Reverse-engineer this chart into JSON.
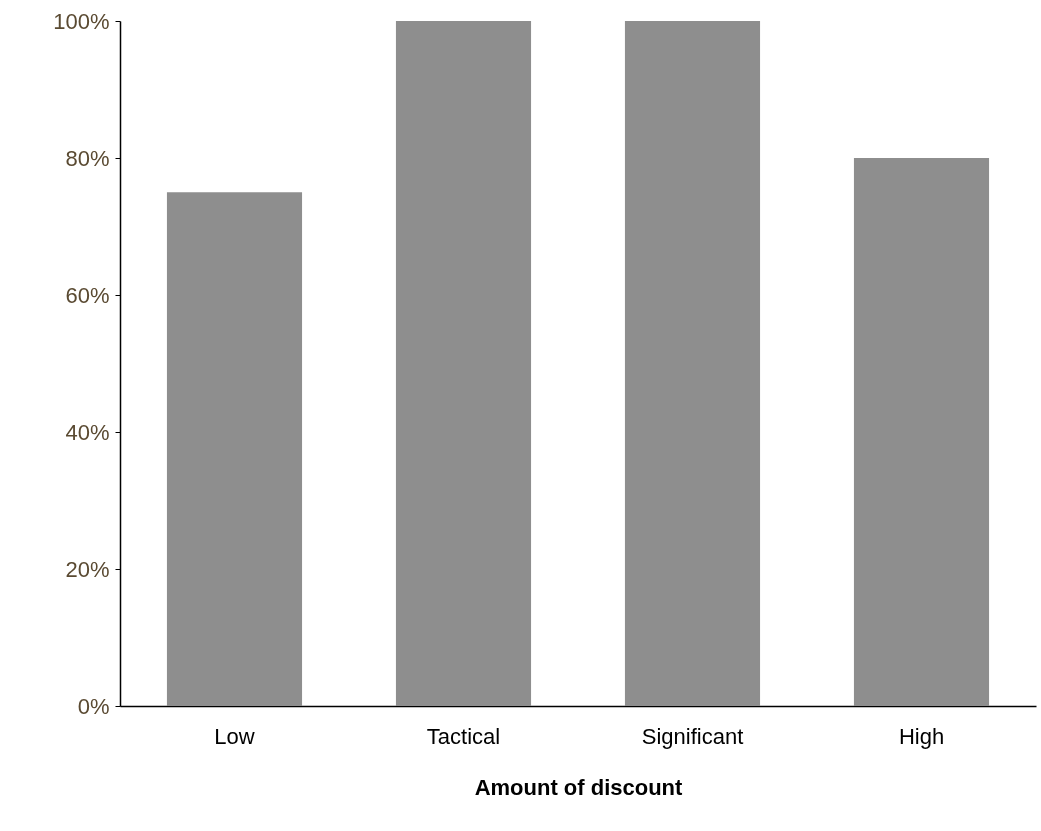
{
  "chart_data": {
    "type": "bar",
    "xlabel": "Amount of discount",
    "categories": [
      "Low",
      "Tactical",
      "Significant",
      "High"
    ],
    "values": [
      75,
      100,
      100,
      80
    ],
    "color": "#8e8e8e",
    "ylim": [
      0,
      100
    ],
    "yticks": [
      {
        "value": 0,
        "label": "0%"
      },
      {
        "value": 20,
        "label": "20%"
      },
      {
        "value": 40,
        "label": "40%"
      },
      {
        "value": 60,
        "label": "60%"
      },
      {
        "value": 80,
        "label": "80%"
      },
      {
        "value": 100,
        "label": "100%"
      }
    ],
    "grid": false
  }
}
